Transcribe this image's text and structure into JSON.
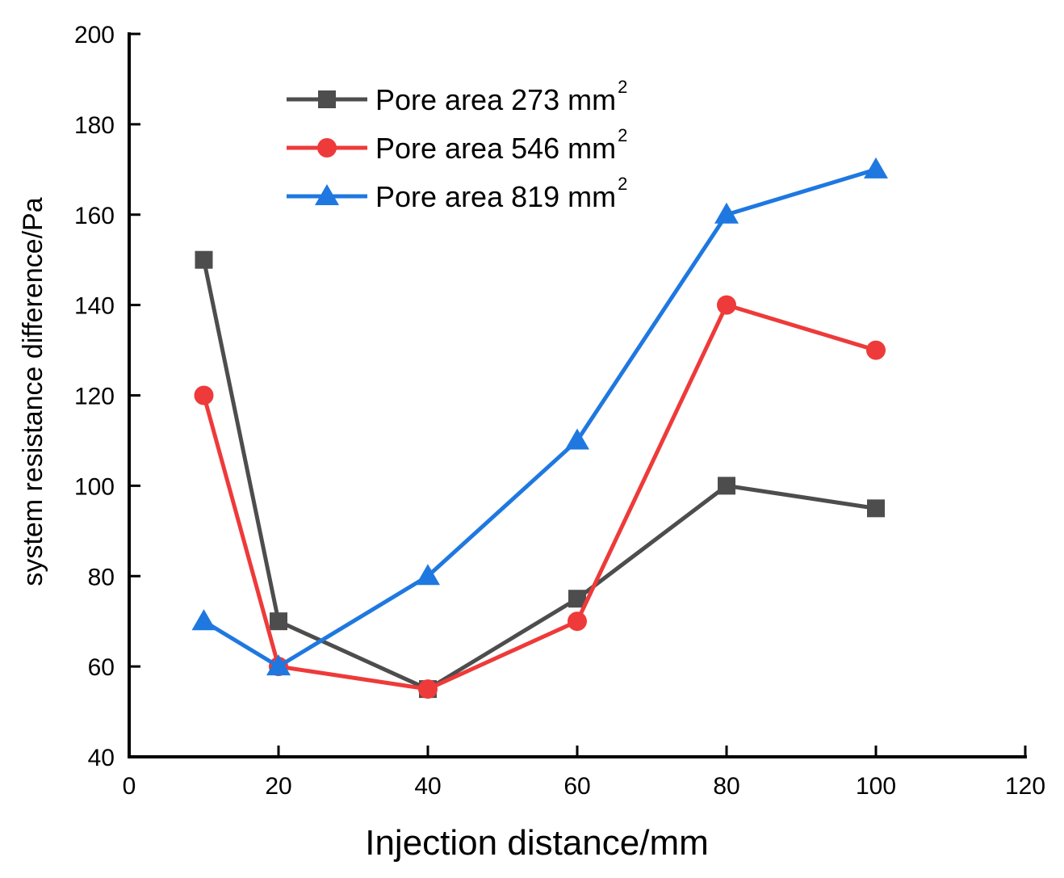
{
  "chart_data": {
    "type": "line",
    "title": "",
    "xlabel": "Injection distance/mm",
    "ylabel": "system resistance difference/Pa",
    "xlim": [
      0,
      120
    ],
    "ylim": [
      40,
      200
    ],
    "xticks": [
      "0",
      "20",
      "40",
      "60",
      "80",
      "100",
      "120"
    ],
    "yticks": [
      "40",
      "60",
      "80",
      "100",
      "120",
      "140",
      "160",
      "180",
      "200"
    ],
    "grid": false,
    "legend_position": "top-left",
    "x": [
      10,
      20,
      40,
      60,
      80,
      100
    ],
    "series": [
      {
        "name": "Pore area 273 mm",
        "unit_superscript": "2",
        "color": "#4d4d4d",
        "marker": "square",
        "values": [
          150,
          70,
          55,
          75,
          100,
          95
        ]
      },
      {
        "name": "Pore area 546 mm",
        "unit_superscript": "2",
        "color": "#ee3a3a",
        "marker": "circle",
        "values": [
          120,
          60,
          55,
          70,
          140,
          130
        ]
      },
      {
        "name": "Pore area 819 mm",
        "unit_superscript": "2",
        "color": "#1f78e0",
        "marker": "triangle",
        "values": [
          70,
          60,
          80,
          110,
          160,
          170
        ]
      }
    ]
  }
}
